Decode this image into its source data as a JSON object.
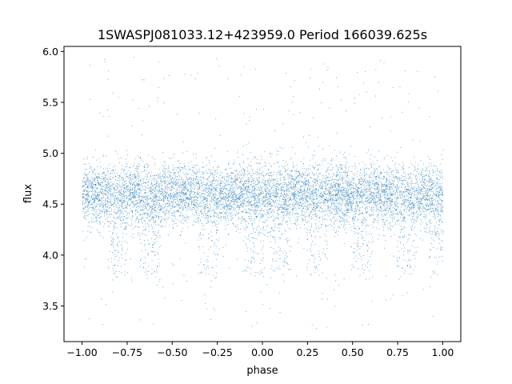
{
  "chart_data": {
    "type": "scatter",
    "title": "1SWASPJ081033.12+423959.0 Period 166039.625s",
    "xlabel": "phase",
    "ylabel": "flux",
    "xlim": [
      -1.1,
      1.1
    ],
    "ylim": [
      3.15,
      6.05
    ],
    "xticks": [
      -1.0,
      -0.75,
      -0.5,
      -0.25,
      0.0,
      0.25,
      0.5,
      0.75,
      1.0
    ],
    "xtick_labels": [
      "−1.00",
      "−0.75",
      "−0.50",
      "−0.25",
      "0.00",
      "0.25",
      "0.50",
      "0.75",
      "1.00"
    ],
    "yticks": [
      3.5,
      4.0,
      4.5,
      5.0,
      5.5,
      6.0
    ],
    "ytick_labels": [
      "3.5",
      "4.0",
      "4.5",
      "5.0",
      "5.5",
      "6.0"
    ],
    "grid": false,
    "legend": "none",
    "marker_color": "#1f77b4",
    "series": [
      {
        "x_range": [
          -1.0,
          1.0
        ],
        "core_band": [
          4.2,
          4.85
        ],
        "median_flux": 4.6,
        "dip_flux_min": 3.8,
        "outlier_range": [
          3.28,
          5.95
        ],
        "dip_phases": [
          -0.8,
          -0.62,
          -0.3,
          -0.05,
          0.1,
          0.3,
          0.55,
          0.8,
          0.98
        ]
      }
    ]
  }
}
